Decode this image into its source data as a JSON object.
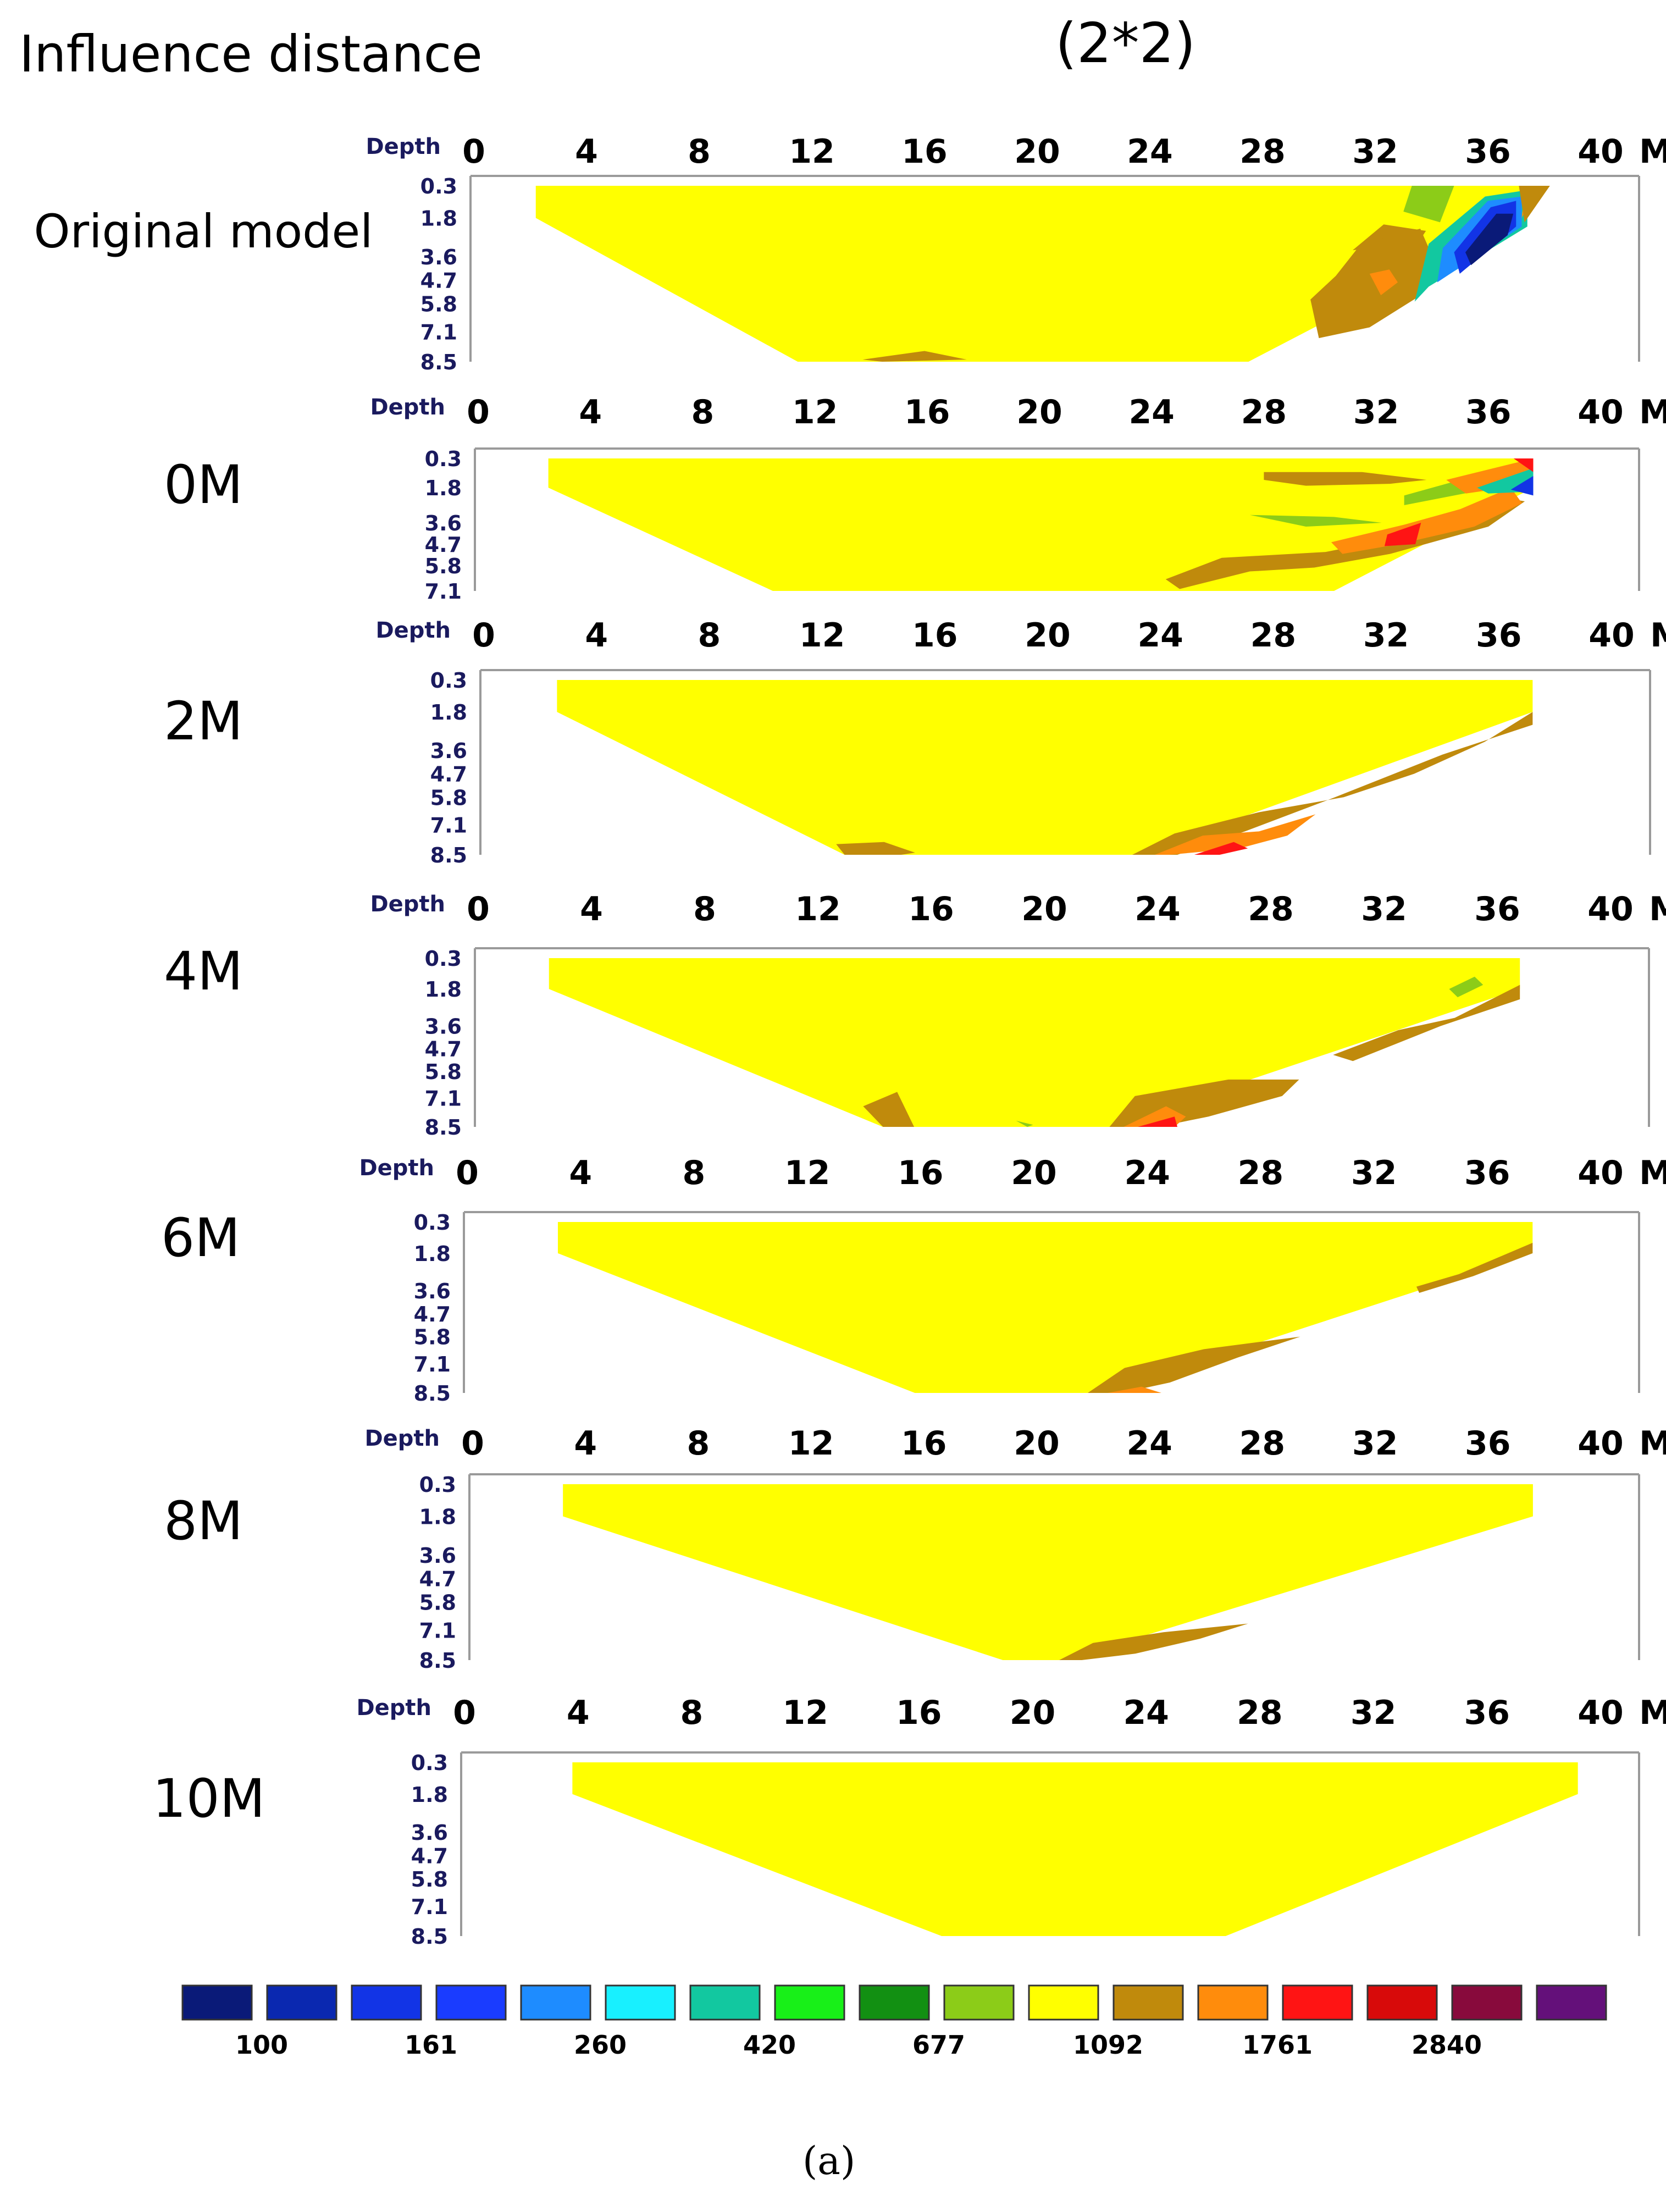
{
  "title": "Influence distance",
  "subtitle": "(2*2)",
  "caption": "(a)",
  "colors": {
    "background": "#ffffff",
    "frame": "#9a9a9a",
    "depth_label": "#1a1a5e",
    "axis_text": "#000000"
  },
  "chart_data": [
    {
      "type": "heatmap",
      "name": "Original model",
      "x_ticks": [
        "0",
        "4",
        "8",
        "12",
        "16",
        "20",
        "24",
        "28",
        "32",
        "36",
        "40",
        "M"
      ],
      "xlim": [
        0,
        40
      ],
      "depth_label": "Depth",
      "y_ticks": [
        "0.3",
        "1.8",
        "3.6",
        "4.7",
        "5.8",
        "7.1",
        "8.5"
      ],
      "section": {
        "top_left_x": 2.2,
        "top_right_x": 37.3,
        "bottom_left_x": 11.5,
        "bottom_right_x": 27.5,
        "max_depth": 8.5
      },
      "background_resistivity": 1092,
      "anomalies": [
        {
          "resistivity": 1092,
          "x": [
            32.3,
            33.8,
            33.5,
            31.2
          ],
          "depth": [
            2.1,
            2.4,
            3.0,
            3.3
          ]
        },
        {
          "resistivity": 1092,
          "x": [
            30.6,
            31.5,
            33.6,
            34.0,
            33.5,
            31.8,
            30.0,
            29.7
          ],
          "depth": [
            4.5,
            3.0,
            2.3,
            3.5,
            5.5,
            6.9,
            7.4,
            5.6
          ]
        },
        {
          "resistivity": 1761,
          "x": [
            31.8,
            32.5,
            32.8,
            32.2
          ],
          "depth": [
            4.4,
            4.2,
            4.8,
            5.4
          ]
        },
        {
          "resistivity": 677,
          "x": [
            33.3,
            34.8,
            34.3,
            33.0
          ],
          "depth": [
            0.3,
            0.3,
            2.0,
            1.5
          ]
        },
        {
          "resistivity": 420,
          "x": [
            33.9,
            35.9,
            37.4,
            37.4,
            33.9,
            33.4
          ],
          "depth": [
            3.0,
            0.8,
            0.5,
            2.2,
            5.0,
            5.7
          ]
        },
        {
          "resistivity": 260,
          "x": [
            34.4,
            36.0,
            37.2,
            37.2,
            34.2
          ],
          "depth": [
            3.2,
            1.0,
            0.8,
            2.2,
            4.8
          ]
        },
        {
          "resistivity": 161,
          "x": [
            34.8,
            36.1,
            37.0,
            37.0,
            35.0
          ],
          "depth": [
            3.4,
            1.3,
            1.0,
            2.2,
            4.4
          ]
        },
        {
          "resistivity": 100,
          "x": [
            35.2,
            36.3,
            36.9,
            36.7,
            35.4
          ],
          "depth": [
            3.4,
            1.6,
            1.6,
            2.6,
            4.0
          ]
        },
        {
          "resistivity": 1761,
          "x": [
            37.3,
            37.5,
            37.2
          ],
          "depth": [
            0.6,
            1.0,
            1.8
          ]
        },
        {
          "resistivity": 1092,
          "x": [
            37.1,
            38.2,
            37.3
          ],
          "depth": [
            0.3,
            0.3,
            2.0
          ]
        },
        {
          "resistivity": 1092,
          "x": [
            13.8,
            16.0,
            17.5,
            14.5
          ],
          "depth": [
            8.4,
            8.0,
            8.4,
            8.5
          ]
        }
      ]
    },
    {
      "type": "heatmap",
      "name": "0M",
      "x_ticks": [
        "0",
        "4",
        "8",
        "12",
        "16",
        "20",
        "24",
        "28",
        "32",
        "36",
        "40",
        "M"
      ],
      "xlim": [
        0,
        40
      ],
      "depth_label": "Depth",
      "y_ticks": [
        "0.3",
        "1.8",
        "3.6",
        "4.7",
        "5.8",
        "7.1"
      ],
      "section": {
        "top_left_x": 2.5,
        "top_right_x": 37.6,
        "bottom_left_x": 10.5,
        "bottom_right_x": 30.5,
        "max_depth": 7.1
      },
      "background_resistivity": 1092,
      "anomalies": [
        {
          "resistivity": 1092,
          "x": [
            28.0,
            31.5,
            33.8,
            32.5,
            29.5,
            28.0
          ],
          "depth": [
            1.0,
            1.0,
            1.4,
            1.6,
            1.7,
            1.4
          ]
        },
        {
          "resistivity": 677,
          "x": [
            27.5,
            30.5,
            32.2,
            29.5
          ],
          "depth": [
            3.2,
            3.3,
            3.6,
            3.8
          ]
        },
        {
          "resistivity": 1092,
          "x": [
            24.5,
            26.5,
            30.2,
            33.0,
            35.0,
            36.5,
            37.3,
            36.0,
            32.5,
            29.8,
            27.5,
            25.0
          ],
          "depth": [
            6.5,
            5.4,
            5.1,
            4.3,
            3.3,
            2.3,
            2.5,
            3.8,
            5.2,
            5.9,
            6.1,
            7.0
          ]
        },
        {
          "resistivity": 1761,
          "x": [
            30.4,
            33.0,
            35.0,
            36.8,
            37.2,
            35.5,
            32.8,
            30.8
          ],
          "depth": [
            4.6,
            3.7,
            2.9,
            1.8,
            2.6,
            3.8,
            4.7,
            5.2
          ]
        },
        {
          "resistivity": 2840,
          "x": [
            32.4,
            33.6,
            33.4,
            32.3
          ],
          "depth": [
            4.2,
            3.6,
            4.7,
            4.8
          ]
        },
        {
          "resistivity": 677,
          "x": [
            33.0,
            35.0,
            36.5,
            37.4,
            35.5,
            33.0
          ],
          "depth": [
            2.2,
            1.4,
            0.9,
            1.2,
            2.0,
            2.7
          ]
        },
        {
          "resistivity": 1761,
          "x": [
            34.5,
            37.6,
            37.6,
            35.2
          ],
          "depth": [
            1.4,
            0.3,
            1.6,
            2.1
          ]
        },
        {
          "resistivity": 420,
          "x": [
            35.6,
            37.6,
            37.6,
            36.0
          ],
          "depth": [
            1.8,
            0.8,
            2.0,
            2.1
          ]
        },
        {
          "resistivity": 161,
          "x": [
            36.8,
            37.6,
            37.6
          ],
          "depth": [
            1.9,
            1.2,
            2.2
          ]
        },
        {
          "resistivity": 2840,
          "x": [
            36.9,
            37.6,
            37.6
          ],
          "depth": [
            0.3,
            0.3,
            1.0
          ]
        }
      ]
    },
    {
      "type": "heatmap",
      "name": "2M",
      "x_ticks": [
        "0",
        "4",
        "8",
        "12",
        "16",
        "20",
        "24",
        "28",
        "32",
        "36",
        "40",
        "M"
      ],
      "xlim": [
        0,
        40
      ],
      "depth_label": "Depth",
      "y_ticks": [
        "0.3",
        "1.8",
        "3.6",
        "4.7",
        "5.8",
        "7.1",
        "8.5"
      ],
      "section": {
        "top_left_x": 2.6,
        "top_right_x": 37.2,
        "bottom_left_x": 12.8,
        "bottom_right_x": 23.2,
        "max_depth": 8.5
      },
      "background_resistivity": 1092,
      "anomalies": [
        {
          "resistivity": 1092,
          "x": [
            12.5,
            14.2,
            15.3,
            14.8,
            12.8
          ],
          "depth": [
            8.0,
            7.9,
            8.4,
            8.5,
            8.5
          ]
        },
        {
          "resistivity": 1092,
          "x": [
            23.0,
            24.5,
            27.5,
            30.5,
            33.0,
            35.5,
            37.2,
            37.2,
            34.0,
            30.0,
            27.0,
            24.6
          ],
          "depth": [
            8.5,
            7.5,
            6.5,
            5.8,
            4.7,
            3.2,
            1.8,
            2.4,
            3.8,
            5.9,
            7.4,
            8.5
          ]
        },
        {
          "resistivity": 1761,
          "x": [
            23.8,
            25.5,
            27.5,
            29.5,
            28.5,
            26.8,
            24.3
          ],
          "depth": [
            8.5,
            7.6,
            7.4,
            6.6,
            7.6,
            8.2,
            8.5
          ]
        },
        {
          "resistivity": 2840,
          "x": [
            25.2,
            26.6,
            27.1,
            26.1
          ],
          "depth": [
            8.5,
            7.9,
            8.2,
            8.5
          ]
        }
      ]
    },
    {
      "type": "heatmap",
      "name": "4M",
      "x_ticks": [
        "0",
        "4",
        "8",
        "12",
        "16",
        "20",
        "24",
        "28",
        "32",
        "36",
        "40",
        "M"
      ],
      "xlim": [
        0,
        40
      ],
      "depth_label": "Depth",
      "y_ticks": [
        "0.3",
        "1.8",
        "3.6",
        "4.7",
        "5.8",
        "7.1",
        "8.5"
      ],
      "section": {
        "top_left_x": 2.5,
        "top_right_x": 36.8,
        "bottom_left_x": 14.3,
        "bottom_right_x": 22.3,
        "max_depth": 8.5
      },
      "background_resistivity": 1092,
      "anomalies": [
        {
          "resistivity": 1092,
          "x": [
            13.6,
            14.8,
            15.4,
            14.3
          ],
          "depth": [
            7.5,
            6.8,
            8.5,
            8.5
          ]
        },
        {
          "resistivity": 677,
          "x": [
            19.0,
            19.6,
            19.4
          ],
          "depth": [
            8.2,
            8.4,
            8.5
          ]
        },
        {
          "resistivity": 1092,
          "x": [
            22.3,
            23.2,
            26.5,
            29.0,
            28.4,
            25.8,
            24.0
          ],
          "depth": [
            8.5,
            7.0,
            6.2,
            6.2,
            7.0,
            8.0,
            8.5
          ]
        },
        {
          "resistivity": 1761,
          "x": [
            22.8,
            24.3,
            25.0,
            24.6,
            23.2
          ],
          "depth": [
            8.5,
            7.5,
            8.0,
            8.5,
            8.5
          ]
        },
        {
          "resistivity": 2840,
          "x": [
            23.3,
            24.6,
            24.7,
            23.5
          ],
          "depth": [
            8.5,
            8.0,
            8.5,
            8.5
          ]
        },
        {
          "resistivity": 1092,
          "x": [
            30.2,
            32.5,
            34.5,
            36.8,
            36.8,
            34.0,
            30.9
          ],
          "depth": [
            5.0,
            3.8,
            3.2,
            1.6,
            2.3,
            3.6,
            5.3
          ]
        },
        {
          "resistivity": 677,
          "x": [
            34.3,
            35.2,
            35.5,
            34.6
          ],
          "depth": [
            1.8,
            1.2,
            1.6,
            2.2
          ]
        }
      ]
    },
    {
      "type": "heatmap",
      "name": "6M",
      "x_ticks": [
        "0",
        "4",
        "8",
        "12",
        "16",
        "20",
        "24",
        "28",
        "32",
        "36",
        "40",
        "M"
      ],
      "xlim": [
        0,
        40
      ],
      "depth_label": "Depth",
      "y_ticks": [
        "0.3",
        "1.8",
        "3.6",
        "4.7",
        "5.8",
        "7.1",
        "8.5"
      ],
      "section": {
        "top_left_x": 3.2,
        "top_right_x": 37.6,
        "bottom_left_x": 15.8,
        "bottom_right_x": 22.5,
        "max_depth": 8.5
      },
      "background_resistivity": 1092,
      "anomalies": [
        {
          "resistivity": 1092,
          "x": [
            21.9,
            23.2,
            26.0,
            29.4,
            27.2,
            24.8,
            23.1
          ],
          "depth": [
            8.5,
            7.3,
            6.4,
            5.8,
            6.8,
            8.0,
            8.5
          ]
        },
        {
          "resistivity": 1761,
          "x": [
            22.6,
            23.8,
            24.5,
            23.5
          ],
          "depth": [
            8.5,
            8.2,
            8.5,
            8.5
          ]
        },
        {
          "resistivity": 1092,
          "x": [
            33.5,
            35.0,
            37.6,
            37.6,
            35.5,
            33.6
          ],
          "depth": [
            3.4,
            2.8,
            1.3,
            1.8,
            2.9,
            3.7
          ]
        }
      ]
    },
    {
      "type": "heatmap",
      "name": "8M",
      "x_ticks": [
        "0",
        "4",
        "8",
        "12",
        "16",
        "20",
        "24",
        "28",
        "32",
        "36",
        "40",
        "M"
      ],
      "xlim": [
        0,
        40
      ],
      "depth_label": "Depth",
      "y_ticks": [
        "0.3",
        "1.8",
        "3.6",
        "4.7",
        "5.8",
        "7.1",
        "8.5"
      ],
      "section": {
        "top_left_x": 3.2,
        "top_right_x": 37.6,
        "bottom_left_x": 18.8,
        "bottom_right_x": 21.0,
        "max_depth": 8.5
      },
      "background_resistivity": 1092,
      "anomalies": [
        {
          "resistivity": 1092,
          "x": [
            20.8,
            22.0,
            24.5,
            27.5,
            25.8,
            23.5,
            21.6
          ],
          "depth": [
            8.5,
            7.7,
            7.2,
            6.8,
            7.5,
            8.2,
            8.5
          ]
        }
      ]
    },
    {
      "type": "heatmap",
      "name": "10M",
      "x_ticks": [
        "0",
        "4",
        "8",
        "12",
        "16",
        "20",
        "24",
        "28",
        "32",
        "36",
        "40",
        "M"
      ],
      "xlim": [
        0,
        40
      ],
      "depth_label": "Depth",
      "y_ticks": [
        "0.3",
        "1.8",
        "3.6",
        "4.7",
        "5.8",
        "7.1",
        "8.5"
      ],
      "section": {
        "top_left_x": 3.8,
        "top_right_x": 39.2,
        "bottom_left_x": 16.8,
        "bottom_right_x": 26.8,
        "max_depth": 8.5
      },
      "background_resistivity": 1092,
      "anomalies": []
    }
  ],
  "legend": {
    "swatches": [
      "#0a1a78",
      "#0a28b0",
      "#1234e6",
      "#1a3cff",
      "#1e8cff",
      "#18f0ff",
      "#12c8a0",
      "#18f018",
      "#129012",
      "#8ccc18",
      "#ffff00",
      "#c08a0c",
      "#ff8c0c",
      "#ff1414",
      "#d80a0a",
      "#880a3c",
      "#64107a"
    ],
    "labels": [
      "100",
      "161",
      "260",
      "420",
      "677",
      "1092",
      "1761",
      "2840"
    ],
    "value_colors": {
      "100": "#0a1a78",
      "161": "#1234e6",
      "260": "#1e8cff",
      "420": "#12c8a0",
      "677": "#8ccc18",
      "1092": "#c08a0c",
      "1761": "#ff8c0c",
      "2840": "#ff1414"
    },
    "background_color": "#ffff00"
  }
}
